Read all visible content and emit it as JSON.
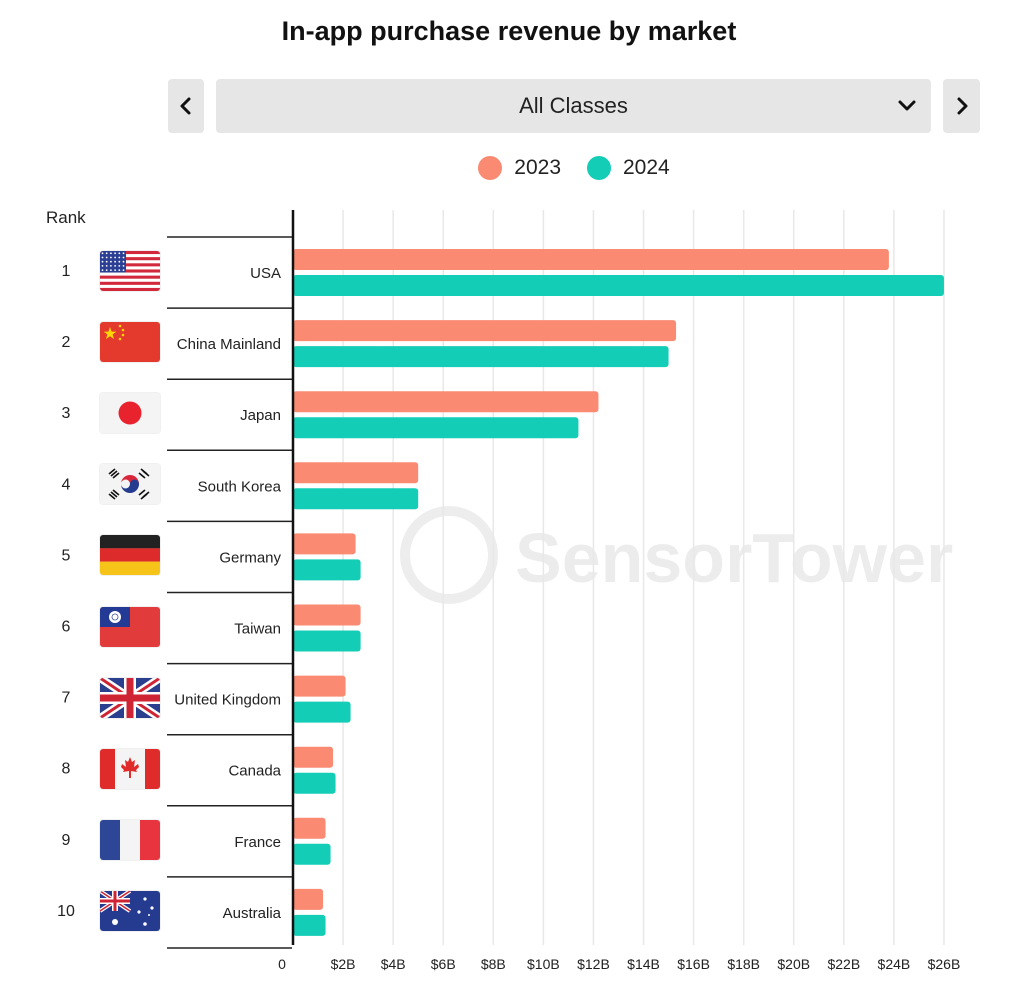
{
  "title": "In-app purchase revenue by market",
  "controls": {
    "prev_icon": "chevron-left-icon",
    "next_icon": "chevron-right-icon",
    "dropdown_value": "All Classes",
    "dropdown_icon": "chevron-down-icon"
  },
  "watermark": "SensorTower",
  "rank_header": "Rank",
  "colors": {
    "2023": "#fa8a72",
    "2024": "#14cdb6",
    "grid": "#e8e8e8",
    "axis": "#111111"
  },
  "chart_data": {
    "type": "bar",
    "orientation": "horizontal",
    "title": "In-app purchase revenue by market",
    "categories": [
      "USA",
      "China Mainland",
      "Japan",
      "South Korea",
      "Germany",
      "Taiwan",
      "United Kingdom",
      "Canada",
      "France",
      "Australia"
    ],
    "ranks": [
      "1",
      "2",
      "3",
      "4",
      "5",
      "6",
      "7",
      "8",
      "9",
      "10"
    ],
    "flags": [
      "usa-flag",
      "china-flag",
      "japan-flag",
      "south-korea-flag",
      "germany-flag",
      "taiwan-flag",
      "uk-flag",
      "canada-flag",
      "france-flag",
      "australia-flag"
    ],
    "series": [
      {
        "name": "2023",
        "values": [
          23.8,
          15.3,
          12.2,
          5.0,
          2.5,
          2.7,
          2.1,
          1.6,
          1.3,
          1.2
        ]
      },
      {
        "name": "2024",
        "values": [
          26.0,
          15.0,
          11.4,
          5.0,
          2.7,
          2.7,
          2.3,
          1.7,
          1.5,
          1.3
        ]
      }
    ],
    "x_ticks": [
      "0",
      "$2B",
      "$4B",
      "$6B",
      "$8B",
      "$10B",
      "$12B",
      "$14B",
      "$16B",
      "$18B",
      "$20B",
      "$22B",
      "$24B",
      "$26B"
    ],
    "xlim": [
      0,
      26.8
    ],
    "grid": true,
    "legend_position": "top-center"
  }
}
